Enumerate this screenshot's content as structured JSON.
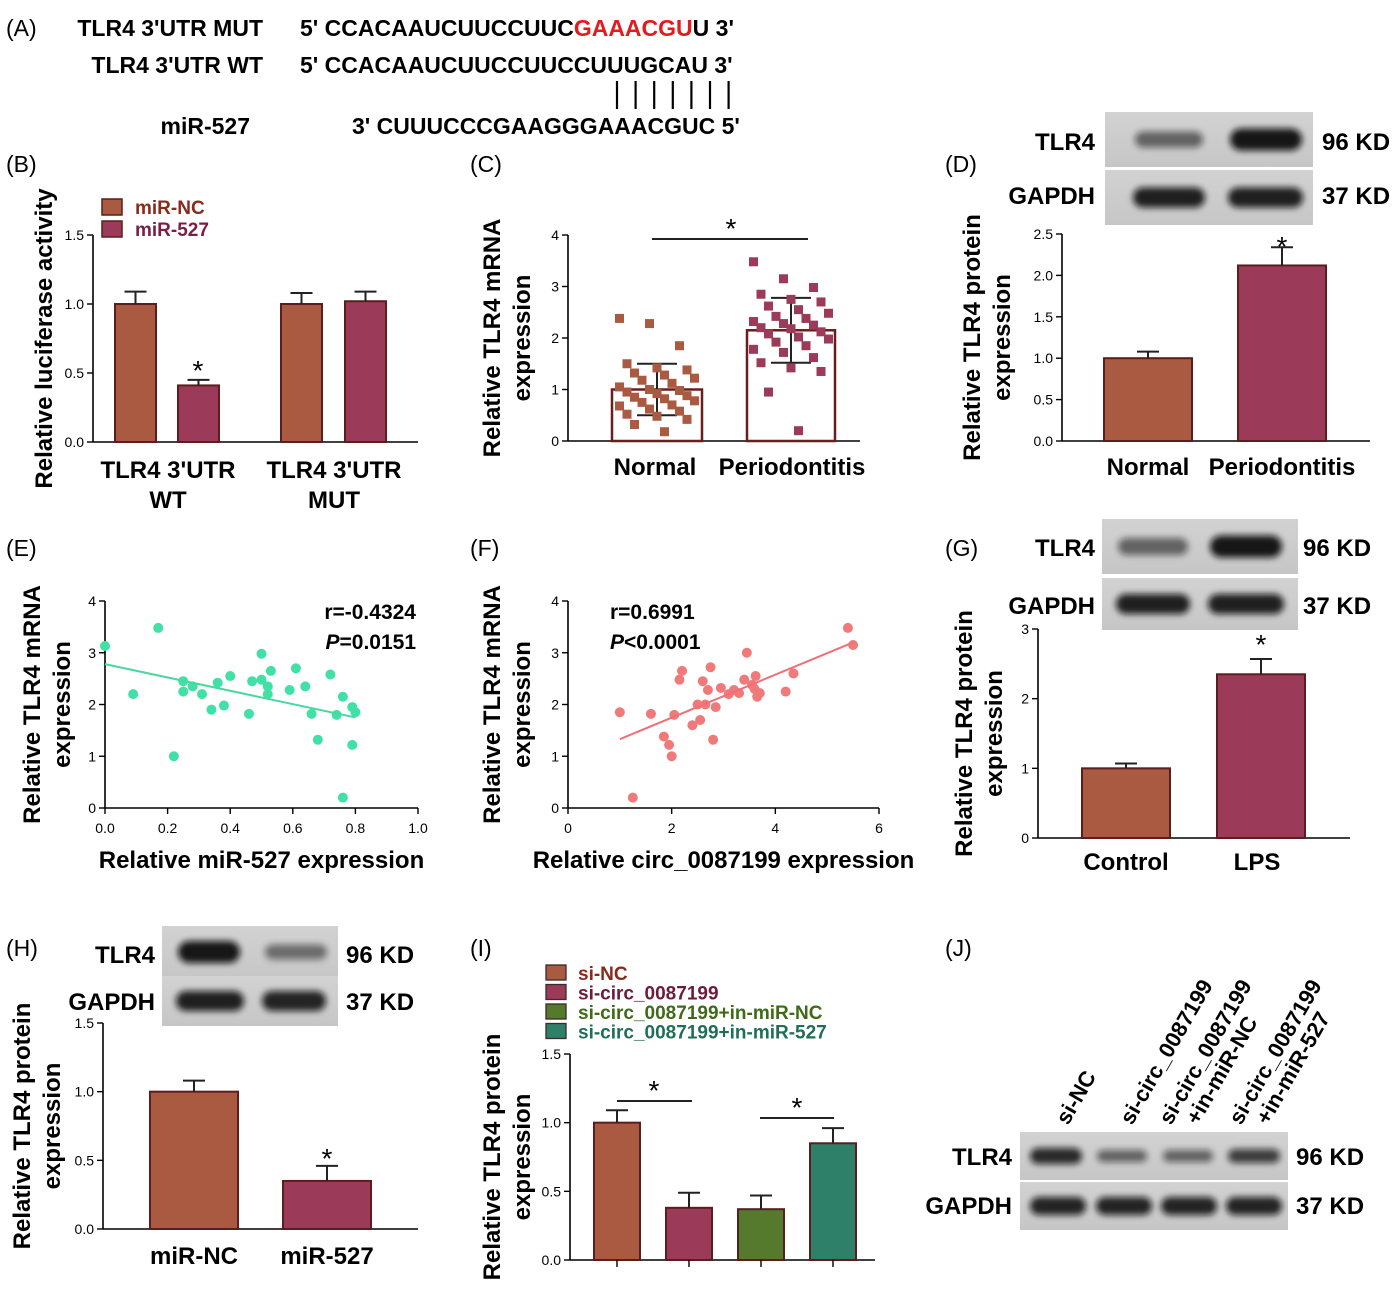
{
  "panelA": {
    "label": "(A)",
    "mut_name": "TLR4 3'UTR MUT",
    "mut_prefix": "5' CCACAAUCUUCCUUC",
    "mut_site": "GAAACGU",
    "mut_suffix": "U 3'",
    "wt_name": "TLR4 3'UTR WT",
    "wt_seq": "5' CCACAAUCUUCCUUCCUUUGCAU 3'",
    "mir_name": "miR-527",
    "mir_seq": "3' CUUUCCCGAAGGGAAACGUC 5'",
    "pair_lines": 7,
    "mut_color": "#e41a1c"
  },
  "colors": {
    "rust": "#a95a40",
    "maroon": "#9c3a5a",
    "olive": "#557a2d",
    "teal": "#2e8068",
    "green_pts": "#40e0a6",
    "pink_pts": "#f07a7a",
    "green_line": "#48d8a0",
    "pink_line": "#ef6f78",
    "axis": "#000000"
  },
  "chart_data": [
    {
      "panel": "(B)",
      "type": "bar",
      "ylabel": "Relative luciferase activity",
      "ylim": [
        0,
        1.5
      ],
      "yticks": [
        "0.0",
        "0.5",
        "1.0",
        "1.5"
      ],
      "categories": [
        "TLR4 3'UTR WT",
        "TLR4 3'UTR MUT"
      ],
      "cat_lines": [
        [
          "TLR4 3'UTR",
          "WT"
        ],
        [
          "TLR4 3'UTR",
          "MUT"
        ]
      ],
      "series": [
        {
          "name": "miR-NC",
          "values": [
            1.0,
            1.0
          ],
          "err": [
            0.09,
            0.08
          ],
          "color": "#a95a40"
        },
        {
          "name": "miR-527",
          "values": [
            0.41,
            1.02
          ],
          "err": [
            0.04,
            0.07
          ],
          "color": "#9c3a5a"
        }
      ],
      "legend": "top-left",
      "star": "*"
    },
    {
      "panel": "(C)",
      "type": "bar",
      "ylabel": "Relative TLR4 mRNA expression",
      "ylabel_lines": [
        "Relative TLR4 mRNA",
        "expression"
      ],
      "ylim": [
        0,
        4
      ],
      "yticks": [
        "0",
        "1",
        "2",
        "3",
        "4"
      ],
      "categories": [
        "Normal",
        "Periodontitis"
      ],
      "values": [
        1.0,
        2.15
      ],
      "err": [
        0.5,
        0.63
      ],
      "colors": [
        "#a95a40",
        "#9c3a5a"
      ],
      "points": [
        [
          2.38,
          2.28,
          1.85,
          1.5,
          1.42,
          1.38,
          1.32,
          1.28,
          1.22,
          1.18,
          1.12,
          1.05,
          1.0,
          0.98,
          0.95,
          0.92,
          0.88,
          0.85,
          0.82,
          0.78,
          0.75,
          0.7,
          0.68,
          0.62,
          0.58,
          0.52,
          0.48,
          0.42,
          0.32,
          0.18
        ],
        [
          3.48,
          3.15,
          2.98,
          2.85,
          2.75,
          2.7,
          2.62,
          2.55,
          2.48,
          2.42,
          2.38,
          2.32,
          2.28,
          2.25,
          2.2,
          2.18,
          2.12,
          2.08,
          2.02,
          1.98,
          1.92,
          1.85,
          1.78,
          1.72,
          1.62,
          1.52,
          1.42,
          1.35,
          0.95,
          0.2
        ]
      ],
      "sig_label": "*"
    },
    {
      "panel": "(D)",
      "type": "bar",
      "ylabel": "Relative TLR4 protein expression",
      "ylabel_lines": [
        "Relative TLR4 protein",
        "expression"
      ],
      "ylim": [
        0,
        2.5
      ],
      "yticks": [
        "0.0",
        "0.5",
        "1.0",
        "1.5",
        "2.0",
        "2.5"
      ],
      "categories": [
        "Normal",
        "Periodontitis"
      ],
      "values": [
        1.0,
        2.12
      ],
      "err": [
        0.08,
        0.22
      ],
      "colors": [
        "#a95a40",
        "#9c3a5a"
      ],
      "star": "*"
    },
    {
      "panel": "(E)",
      "type": "scatter",
      "xlabel": "Relative miR-527 expression",
      "ylabel": "Relative TLR4 mRNA expression",
      "ylabel_lines": [
        "Relative TLR4 mRNA",
        "expression"
      ],
      "xlim": [
        0,
        1.0
      ],
      "ylim": [
        0,
        4
      ],
      "xticks": [
        "0.0",
        "0.2",
        "0.4",
        "0.6",
        "0.8",
        "1.0"
      ],
      "yticks": [
        "0",
        "1",
        "2",
        "3",
        "4"
      ],
      "stat_r": "r=-0.4324",
      "stat_p_label": "P",
      "stat_p_value": "=0.0151",
      "points": [
        [
          0.0,
          3.13
        ],
        [
          0.09,
          2.2
        ],
        [
          0.17,
          3.48
        ],
        [
          0.22,
          1.0
        ],
        [
          0.25,
          2.25
        ],
        [
          0.25,
          2.45
        ],
        [
          0.28,
          2.35
        ],
        [
          0.31,
          2.2
        ],
        [
          0.34,
          1.9
        ],
        [
          0.36,
          2.42
        ],
        [
          0.38,
          1.98
        ],
        [
          0.4,
          2.55
        ],
        [
          0.46,
          1.82
        ],
        [
          0.47,
          2.45
        ],
        [
          0.5,
          2.98
        ],
        [
          0.5,
          2.48
        ],
        [
          0.52,
          2.2
        ],
        [
          0.52,
          2.35
        ],
        [
          0.53,
          2.65
        ],
        [
          0.59,
          2.28
        ],
        [
          0.61,
          2.7
        ],
        [
          0.64,
          2.35
        ],
        [
          0.66,
          1.82
        ],
        [
          0.68,
          1.32
        ],
        [
          0.72,
          2.58
        ],
        [
          0.74,
          1.8
        ],
        [
          0.76,
          2.15
        ],
        [
          0.76,
          0.2
        ],
        [
          0.79,
          1.95
        ],
        [
          0.79,
          1.22
        ],
        [
          0.8,
          1.85
        ]
      ],
      "fit": {
        "x": [
          0.0,
          0.8
        ],
        "y": [
          2.78,
          1.75
        ]
      }
    },
    {
      "panel": "(F)",
      "type": "scatter",
      "xlabel": "Relative circ_0087199 expression",
      "ylabel": "Relative TLR4 mRNA expression",
      "ylabel_lines": [
        "Relative TLR4 mRNA",
        "expression"
      ],
      "xlim": [
        0,
        6
      ],
      "ylim": [
        0,
        4
      ],
      "xticks": [
        "0",
        "2",
        "4",
        "6"
      ],
      "yticks": [
        "0",
        "1",
        "2",
        "3",
        "4"
      ],
      "stat_r": "r=0.6991",
      "stat_p_label": "P",
      "stat_p_value": "<0.0001",
      "points": [
        [
          1.0,
          1.85
        ],
        [
          1.25,
          0.2
        ],
        [
          1.6,
          1.82
        ],
        [
          1.85,
          1.38
        ],
        [
          1.95,
          1.22
        ],
        [
          2.0,
          1.0
        ],
        [
          2.05,
          1.8
        ],
        [
          2.15,
          2.48
        ],
        [
          2.2,
          2.65
        ],
        [
          2.4,
          1.6
        ],
        [
          2.5,
          2.0
        ],
        [
          2.55,
          1.7
        ],
        [
          2.6,
          2.45
        ],
        [
          2.65,
          2.0
        ],
        [
          2.7,
          2.28
        ],
        [
          2.75,
          2.72
        ],
        [
          2.8,
          1.32
        ],
        [
          2.85,
          1.95
        ],
        [
          2.95,
          2.32
        ],
        [
          3.1,
          2.2
        ],
        [
          3.2,
          2.28
        ],
        [
          3.3,
          2.22
        ],
        [
          3.4,
          2.48
        ],
        [
          3.45,
          3.0
        ],
        [
          3.55,
          2.38
        ],
        [
          3.6,
          2.3
        ],
        [
          3.62,
          2.55
        ],
        [
          3.65,
          2.15
        ],
        [
          3.7,
          2.22
        ],
        [
          4.2,
          2.25
        ],
        [
          4.35,
          2.6
        ],
        [
          5.4,
          3.48
        ],
        [
          5.5,
          3.15
        ]
      ],
      "fit": {
        "x": [
          1.0,
          5.5
        ],
        "y": [
          1.33,
          3.2
        ]
      }
    },
    {
      "panel": "(G)",
      "type": "bar",
      "ylabel": "Relative TLR4 protein expression",
      "ylabel_lines": [
        "Relative TLR4 protein",
        "expression"
      ],
      "ylim": [
        0,
        3
      ],
      "yticks": [
        "0",
        "1",
        "2",
        "3"
      ],
      "categories": [
        "Control",
        "LPS"
      ],
      "values": [
        1.0,
        2.35
      ],
      "err": [
        0.07,
        0.22
      ],
      "colors": [
        "#a95a40",
        "#9c3a5a"
      ],
      "star": "*"
    },
    {
      "panel": "(H)",
      "type": "bar",
      "ylabel": "Relative TLR4 protein expression",
      "ylabel_lines": [
        "Relative TLR4 protein",
        "expression"
      ],
      "ylim": [
        0,
        1.5
      ],
      "yticks": [
        "0.0",
        "0.5",
        "1.0",
        "1.5"
      ],
      "categories": [
        "miR-NC",
        "miR-527"
      ],
      "values": [
        1.0,
        0.35
      ],
      "err": [
        0.08,
        0.11
      ],
      "colors": [
        "#a95a40",
        "#9c3a5a"
      ],
      "star": "*"
    },
    {
      "panel": "(I)",
      "type": "bar",
      "ylabel": "Relative TLR4 protein expression",
      "ylabel_lines": [
        "Relative TLR4 protein",
        "expression"
      ],
      "ylim": [
        0,
        1.5
      ],
      "yticks": [
        "0.0",
        "0.5",
        "1.0",
        "1.5"
      ],
      "categories": [
        "si-NC",
        "si-circ_0087199",
        "si-circ_0087199+in-miR-NC",
        "si-circ_0087199+in-miR-527"
      ],
      "values": [
        1.0,
        0.38,
        0.37,
        0.85
      ],
      "err": [
        0.09,
        0.11,
        0.1,
        0.11
      ],
      "colors": [
        "#a95a40",
        "#9c3a5a",
        "#557a2d",
        "#2e8068"
      ],
      "legend": "top-left",
      "sig_label": "*"
    }
  ],
  "blots": {
    "tlr4": "TLR4",
    "gapdh": "GAPDH",
    "kd96": "96 KD",
    "kd37": "37 KD"
  },
  "panelJ": {
    "label": "(J)",
    "lanes": [
      [
        "si-NC"
      ],
      [
        "si-circ_0087199"
      ],
      [
        "si-circ_0087199",
        "+in-miR-NC"
      ],
      [
        "si-circ_0087199",
        "+in-miR-527"
      ]
    ]
  }
}
